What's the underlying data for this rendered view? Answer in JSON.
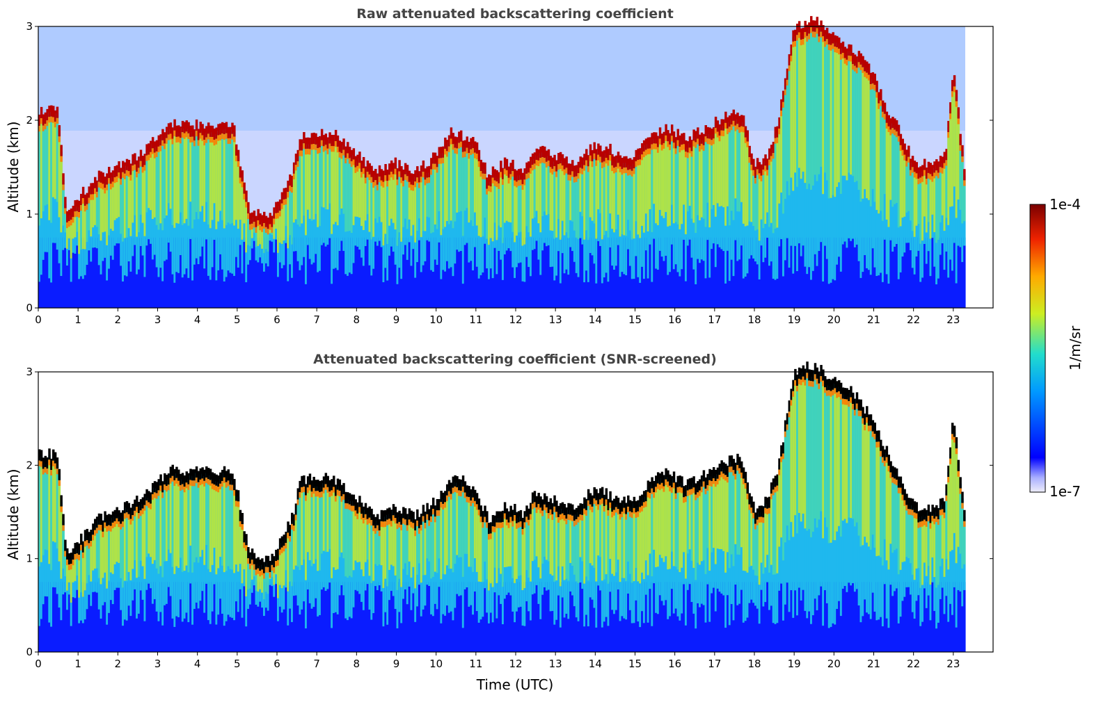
{
  "chart_data": [
    {
      "type": "heatmap",
      "title": "Raw attenuated backscattering coefficient",
      "xlabel": "",
      "ylabel": "Altitude (km)",
      "xlim": [
        0,
        24
      ],
      "ylim": [
        0,
        3
      ],
      "data_end_hour": 23.3,
      "xticks": [
        "0",
        "1",
        "2",
        "3",
        "4",
        "5",
        "6",
        "7",
        "8",
        "9",
        "10",
        "11",
        "12",
        "13",
        "14",
        "15",
        "16",
        "17",
        "18",
        "19",
        "20",
        "21",
        "22",
        "23"
      ],
      "yticks": [
        "0",
        "1",
        "2",
        "3"
      ],
      "screened": false
    },
    {
      "type": "heatmap",
      "title": "Attenuated backscattering coefficient (SNR-screened)",
      "xlabel": "Time (UTC)",
      "ylabel": "Altitude (km)",
      "xlim": [
        0,
        24
      ],
      "ylim": [
        0,
        3
      ],
      "data_end_hour": 23.3,
      "xticks": [
        "0",
        "1",
        "2",
        "3",
        "4",
        "5",
        "6",
        "7",
        "8",
        "9",
        "10",
        "11",
        "12",
        "13",
        "14",
        "15",
        "16",
        "17",
        "18",
        "19",
        "20",
        "21",
        "22",
        "23"
      ],
      "yticks": [
        "0",
        "1",
        "2",
        "3"
      ],
      "screened": true
    }
  ],
  "colorbar": {
    "label": "1/m/sr",
    "max_label": "1e-4",
    "min_label": "1e-7",
    "scale": "log",
    "colormap": "jet",
    "colors": [
      "#e8e8f8",
      "#0000ff",
      "#00aaff",
      "#22ddcc",
      "#ddee22",
      "#ff8800",
      "#cc0000",
      "#7a0000"
    ]
  },
  "cloud_top_km": [
    [
      0.0,
      2.05
    ],
    [
      0.5,
      2.05
    ],
    [
      0.7,
      1.0
    ],
    [
      1.0,
      1.1
    ],
    [
      1.5,
      1.35
    ],
    [
      2.0,
      1.45
    ],
    [
      2.5,
      1.55
    ],
    [
      3.0,
      1.75
    ],
    [
      3.3,
      1.9
    ],
    [
      3.6,
      1.88
    ],
    [
      4.0,
      1.88
    ],
    [
      4.5,
      1.85
    ],
    [
      4.9,
      1.88
    ],
    [
      5.3,
      1.0
    ],
    [
      5.8,
      0.9
    ],
    [
      6.2,
      1.2
    ],
    [
      6.4,
      1.4
    ],
    [
      6.6,
      1.78
    ],
    [
      7.0,
      1.8
    ],
    [
      7.5,
      1.78
    ],
    [
      7.8,
      1.65
    ],
    [
      8.2,
      1.5
    ],
    [
      8.6,
      1.4
    ],
    [
      9.0,
      1.48
    ],
    [
      9.5,
      1.4
    ],
    [
      10.0,
      1.55
    ],
    [
      10.4,
      1.82
    ],
    [
      10.8,
      1.75
    ],
    [
      11.0,
      1.7
    ],
    [
      11.3,
      1.35
    ],
    [
      11.8,
      1.5
    ],
    [
      12.2,
      1.4
    ],
    [
      12.5,
      1.65
    ],
    [
      13.0,
      1.55
    ],
    [
      13.5,
      1.5
    ],
    [
      14.0,
      1.68
    ],
    [
      14.5,
      1.6
    ],
    [
      15.0,
      1.55
    ],
    [
      15.4,
      1.8
    ],
    [
      15.8,
      1.85
    ],
    [
      16.3,
      1.75
    ],
    [
      16.8,
      1.85
    ],
    [
      17.3,
      1.98
    ],
    [
      17.7,
      2.0
    ],
    [
      18.0,
      1.45
    ],
    [
      18.3,
      1.55
    ],
    [
      18.6,
      1.9
    ],
    [
      19.0,
      2.95
    ],
    [
      19.5,
      3.0
    ],
    [
      20.0,
      2.85
    ],
    [
      20.5,
      2.7
    ],
    [
      21.0,
      2.4
    ],
    [
      21.3,
      2.1
    ],
    [
      21.6,
      1.85
    ],
    [
      22.0,
      1.5
    ],
    [
      22.4,
      1.45
    ],
    [
      22.8,
      1.55
    ],
    [
      23.0,
      2.5
    ],
    [
      23.3,
      1.35
    ]
  ]
}
